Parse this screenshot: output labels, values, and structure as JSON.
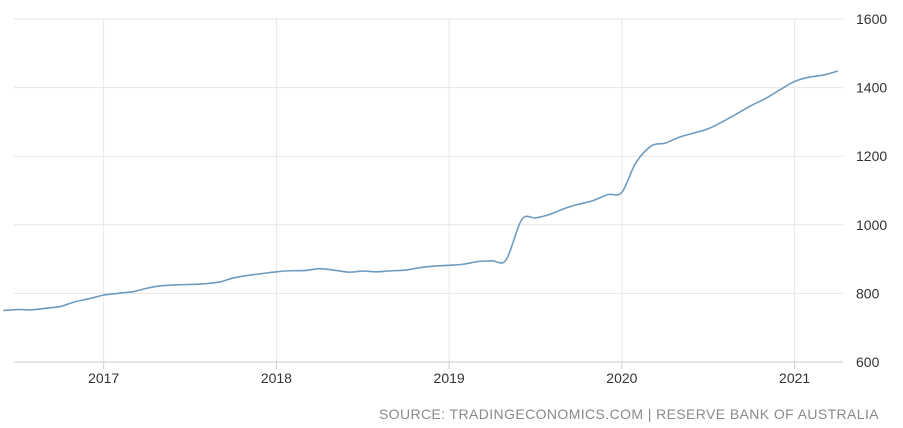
{
  "chart_data": {
    "type": "line",
    "title": "",
    "xlabel": "",
    "ylabel": "",
    "xlim": [
      2016.4,
      2021.28
    ],
    "ylim": [
      600,
      1600
    ],
    "x_ticks": [
      2017,
      2018,
      2019,
      2020,
      2021
    ],
    "x_tick_labels": [
      "2017",
      "2018",
      "2019",
      "2020",
      "2021"
    ],
    "y_ticks": [
      600,
      800,
      1000,
      1200,
      1400,
      1600
    ],
    "y_tick_labels": [
      "600",
      "800",
      "1000",
      "1200",
      "1400",
      "1600"
    ],
    "grid": true,
    "series": [
      {
        "color": "#6e9cc0",
        "x": [
          2016.42,
          2016.5,
          2016.58,
          2016.67,
          2016.75,
          2016.83,
          2016.92,
          2017.0,
          2017.08,
          2017.17,
          2017.25,
          2017.33,
          2017.42,
          2017.5,
          2017.58,
          2017.67,
          2017.75,
          2017.83,
          2017.92,
          2018.0,
          2018.08,
          2018.17,
          2018.25,
          2018.33,
          2018.42,
          2018.5,
          2018.58,
          2018.67,
          2018.75,
          2018.83,
          2018.92,
          2019.0,
          2019.08,
          2019.17,
          2019.25,
          2019.33,
          2019.42,
          2019.5,
          2019.58,
          2019.67,
          2019.75,
          2019.83,
          2019.92,
          2020.0,
          2020.08,
          2020.17,
          2020.25,
          2020.33,
          2020.42,
          2020.5,
          2020.58,
          2020.67,
          2020.75,
          2020.83,
          2020.92,
          2021.0,
          2021.08,
          2021.17,
          2021.25
        ],
        "y": [
          750,
          753,
          752,
          757,
          762,
          775,
          785,
          795,
          800,
          805,
          815,
          822,
          825,
          826,
          828,
          833,
          845,
          852,
          858,
          863,
          866,
          867,
          872,
          868,
          862,
          865,
          863,
          866,
          868,
          875,
          880,
          882,
          885,
          893,
          895,
          898,
          1015,
          1020,
          1030,
          1048,
          1060,
          1070,
          1088,
          1095,
          1180,
          1230,
          1238,
          1255,
          1268,
          1280,
          1300,
          1325,
          1348,
          1368,
          1395,
          1418,
          1430,
          1437,
          1448
        ]
      }
    ]
  },
  "source_text": "SOURCE: TRADINGECONOMICS.COM | RESERVE BANK OF AUSTRALIA"
}
